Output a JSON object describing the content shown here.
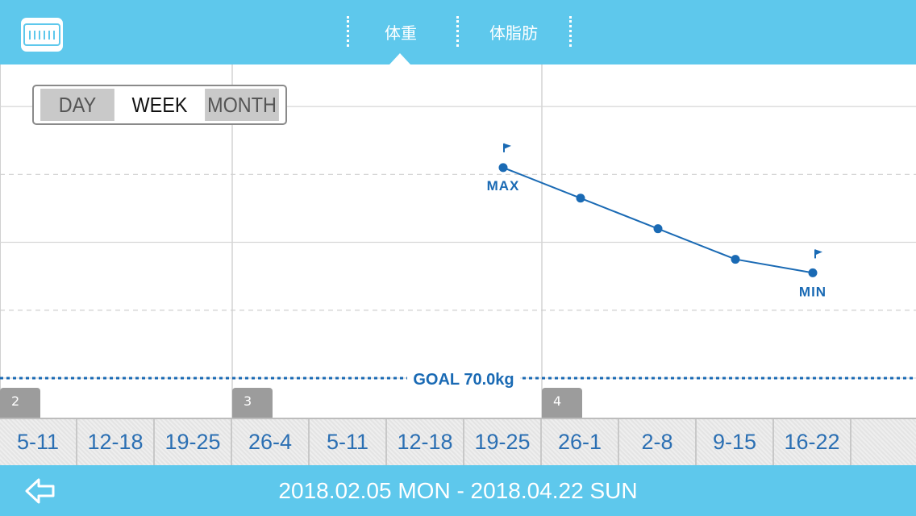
{
  "header": {
    "logo_icon": "scale-ruler-icon",
    "tabs": [
      {
        "label": "体重",
        "active": true
      },
      {
        "label": "体脂肪",
        "active": false
      }
    ]
  },
  "range_toggle": {
    "options": [
      "DAY",
      "WEEK",
      "MONTH"
    ],
    "selected": "WEEK"
  },
  "chart_data": {
    "type": "line",
    "x": [
      "19-25",
      "26-1",
      "2-8",
      "9-15",
      "16-22"
    ],
    "values": [
      76.2,
      75.3,
      74.4,
      73.5,
      73.1
    ],
    "ylim": [
      69.5,
      79.0
    ],
    "y_grid": [
      70.0,
      72.0,
      74.0,
      76.0,
      78.0
    ],
    "max_label": "MAX",
    "min_label": "MIN",
    "goal": {
      "value": 70.0,
      "label": "GOAL 70.0kg"
    },
    "line_color": "#1a6ab4",
    "grid": true
  },
  "months": [
    {
      "label": "2"
    },
    {
      "label": "3"
    },
    {
      "label": "4"
    }
  ],
  "weeks": [
    "5-11",
    "12-18",
    "19-25",
    "26-4",
    "5-11",
    "12-18",
    "19-25",
    "26-1",
    "2-8",
    "9-15",
    "16-22"
  ],
  "footer": {
    "back_icon": "back-arrow-icon",
    "date_range": "2018.02.05 MON - 2018.04.22 SUN"
  },
  "colors": {
    "header_bg": "#5ec8ec",
    "accent": "#1a6ab4",
    "week_text": "#2b6fb3"
  }
}
